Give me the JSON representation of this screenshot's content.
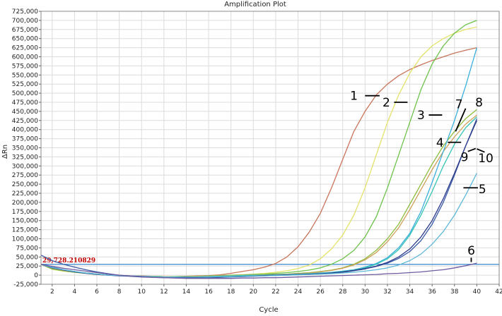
{
  "chart_data": {
    "type": "line",
    "title": "Amplification Plot",
    "xlabel": "Cycle",
    "ylabel": "ΔRn",
    "xlim": [
      1,
      42
    ],
    "ylim": [
      -25000,
      725000
    ],
    "xticks": [
      2,
      4,
      6,
      8,
      10,
      12,
      14,
      16,
      18,
      20,
      22,
      24,
      26,
      28,
      30,
      32,
      34,
      36,
      38,
      40,
      42
    ],
    "yticks": [
      -25000,
      0,
      25000,
      50000,
      75000,
      100000,
      125000,
      150000,
      175000,
      200000,
      225000,
      250000,
      275000,
      300000,
      325000,
      350000,
      375000,
      400000,
      425000,
      450000,
      475000,
      500000,
      525000,
      550000,
      575000,
      600000,
      625000,
      650000,
      675000,
      700000,
      725000
    ],
    "ytick_labels": [
      "-25,000",
      "0",
      "25,000",
      "50,000",
      "75,000",
      "100,000",
      "125,000",
      "150,000",
      "175,000",
      "200,000",
      "225,000",
      "250,000",
      "275,000",
      "300,000",
      "325,000",
      "350,000",
      "375,000",
      "400,000",
      "425,000",
      "450,000",
      "475,000",
      "500,000",
      "525,000",
      "550,000",
      "575,000",
      "600,000",
      "625,000",
      "650,000",
      "675,000",
      "700,000",
      "725,000"
    ],
    "grid": true,
    "threshold": {
      "value": 29728.210829,
      "label": "29,728.210829",
      "color": "#5b9bd5"
    },
    "x": [
      1,
      2,
      3,
      4,
      5,
      6,
      7,
      8,
      9,
      10,
      11,
      12,
      13,
      14,
      15,
      16,
      17,
      18,
      19,
      20,
      21,
      22,
      23,
      24,
      25,
      26,
      27,
      28,
      29,
      30,
      31,
      32,
      33,
      34,
      35,
      36,
      37,
      38,
      39,
      40
    ],
    "series": [
      {
        "color": "#c8745a",
        "values": [
          30000,
          18000,
          13000,
          9000,
          6000,
          3000,
          0,
          -1000,
          -2000,
          -2000,
          -3000,
          -4000,
          -4000,
          -3000,
          -2000,
          -1000,
          1000,
          5000,
          10000,
          15000,
          22000,
          32000,
          50000,
          78000,
          118000,
          170000,
          240000,
          318000,
          395000,
          450000,
          495000,
          525000,
          548000,
          565000,
          578000,
          590000,
          600000,
          610000,
          618000,
          625000
        ]
      },
      {
        "color": "#e3e36a",
        "values": [
          30000,
          16000,
          11000,
          8000,
          5000,
          2000,
          0,
          -1000,
          -2000,
          -3000,
          -3000,
          -4000,
          -4000,
          -4000,
          -3000,
          -2000,
          -1000,
          0,
          1000,
          3000,
          5000,
          8000,
          12000,
          18000,
          28000,
          45000,
          72000,
          110000,
          165000,
          240000,
          330000,
          420000,
          495000,
          555000,
          600000,
          630000,
          650000,
          665000,
          675000,
          682000
        ]
      },
      {
        "color": "#6cc24a",
        "values": [
          30000,
          17000,
          12000,
          8000,
          5000,
          2000,
          0,
          -1000,
          -2000,
          -3000,
          -3000,
          -4000,
          -4000,
          -4000,
          -3000,
          -2000,
          -1000,
          0,
          1000,
          2000,
          3000,
          5000,
          7000,
          10000,
          14000,
          20000,
          30000,
          45000,
          68000,
          105000,
          160000,
          240000,
          330000,
          420000,
          510000,
          580000,
          630000,
          665000,
          688000,
          700000
        ]
      },
      {
        "color": "#8fbc3f",
        "values": [
          30000,
          20000,
          14000,
          9000,
          6000,
          3000,
          0,
          -1000,
          -2000,
          -3000,
          -3000,
          -4000,
          -5000,
          -5000,
          -4000,
          -3000,
          -2000,
          -1000,
          0,
          1000,
          1000,
          2000,
          3000,
          5000,
          7000,
          10000,
          14000,
          20000,
          30000,
          45000,
          68000,
          100000,
          140000,
          195000,
          250000,
          305000,
          355000,
          395000,
          430000,
          455000
        ]
      },
      {
        "color": "#d0a05a",
        "values": [
          30000,
          19000,
          13000,
          9000,
          6000,
          3000,
          0,
          -1000,
          -2000,
          -3000,
          -4000,
          -4000,
          -5000,
          -5000,
          -4000,
          -3000,
          -2000,
          -1000,
          0,
          1000,
          1000,
          2000,
          3000,
          4000,
          6000,
          9000,
          13000,
          19000,
          28000,
          42000,
          62000,
          92000,
          130000,
          180000,
          235000,
          290000,
          340000,
          380000,
          415000,
          440000
        ]
      },
      {
        "color": "#3aafdc",
        "values": [
          30000,
          22000,
          15000,
          10000,
          6000,
          3000,
          0,
          -1000,
          -2000,
          -3000,
          -4000,
          -5000,
          -5000,
          -5000,
          -5000,
          -4000,
          -3000,
          -2000,
          -1000,
          0,
          0,
          1000,
          2000,
          3000,
          4000,
          6000,
          8000,
          11000,
          15000,
          22000,
          32000,
          48000,
          75000,
          115000,
          175000,
          255000,
          340000,
          425000,
          520000,
          625000
        ]
      },
      {
        "color": "#35c4b4",
        "values": [
          30000,
          21000,
          15000,
          10000,
          6000,
          3000,
          0,
          -1000,
          -2000,
          -3000,
          -4000,
          -5000,
          -5000,
          -5000,
          -5000,
          -4000,
          -3000,
          -2000,
          -1000,
          0,
          0,
          1000,
          2000,
          3000,
          4000,
          5000,
          7000,
          10000,
          14000,
          20000,
          30000,
          45000,
          70000,
          110000,
          165000,
          230000,
          300000,
          360000,
          405000,
          435000
        ]
      },
      {
        "color": "#3b5ba5",
        "values": [
          55000,
          40000,
          30000,
          22000,
          15000,
          9000,
          4000,
          0,
          -3000,
          -5000,
          -6000,
          -7000,
          -7000,
          -7000,
          -7000,
          -7000,
          -6000,
          -5000,
          -4000,
          -3000,
          -2000,
          -1000,
          0,
          1000,
          2000,
          3000,
          5000,
          8000,
          12000,
          17000,
          24000,
          33000,
          46000,
          65000,
          95000,
          140000,
          200000,
          275000,
          355000,
          430000
        ]
      },
      {
        "color": "#2b3a8a",
        "values": [
          30000,
          20000,
          14000,
          9000,
          5000,
          2000,
          0,
          -2000,
          -3000,
          -4000,
          -5000,
          -6000,
          -6000,
          -6000,
          -6000,
          -5000,
          -5000,
          -4000,
          -3000,
          -2000,
          -1000,
          0,
          1000,
          2000,
          3000,
          4000,
          6000,
          9000,
          13000,
          18000,
          25000,
          35000,
          50000,
          72000,
          105000,
          150000,
          210000,
          280000,
          355000,
          425000
        ]
      },
      {
        "color": "#5fb8d8",
        "values": [
          30000,
          21000,
          15000,
          10000,
          6000,
          3000,
          0,
          -1000,
          -2000,
          -3000,
          -4000,
          -5000,
          -5000,
          -5000,
          -5000,
          -5000,
          -4000,
          -4000,
          -3000,
          -2000,
          -2000,
          -1000,
          0,
          1000,
          2000,
          3000,
          4000,
          6000,
          8000,
          11000,
          15000,
          20000,
          28000,
          40000,
          58000,
          85000,
          120000,
          165000,
          220000,
          280000
        ]
      },
      {
        "color": "#6e5ba0",
        "values": [
          30000,
          24000,
          19000,
          15000,
          11000,
          7000,
          3000,
          0,
          -2000,
          -4000,
          -6000,
          -7000,
          -8000,
          -9000,
          -9000,
          -9000,
          -9000,
          -9000,
          -8000,
          -8000,
          -7000,
          -7000,
          -6000,
          -5000,
          -4000,
          -3000,
          -2000,
          -1000,
          0,
          1000,
          2000,
          4000,
          5000,
          7000,
          9000,
          12000,
          15000,
          20000,
          26000,
          33000
        ]
      }
    ],
    "annotations": [
      {
        "label": "1",
        "tx": 29.0,
        "ty": 493000,
        "line": [
          [
            30.0,
            493000
          ],
          [
            31.3,
            493000
          ]
        ]
      },
      {
        "label": "2",
        "tx": 31.9,
        "ty": 475000,
        "line": [
          [
            32.6,
            475000
          ],
          [
            33.8,
            475000
          ]
        ]
      },
      {
        "label": "3",
        "tx": 35.0,
        "ty": 440000,
        "line": [
          [
            35.7,
            440000
          ],
          [
            36.9,
            440000
          ]
        ]
      },
      {
        "label": "4",
        "tx": 36.7,
        "ty": 365000,
        "line": [
          [
            37.4,
            365000
          ],
          [
            38.6,
            365000
          ]
        ]
      },
      {
        "label": "5",
        "tx": 40.5,
        "ty": 237000,
        "line": [
          [
            38.8,
            240000
          ],
          [
            40.1,
            240000
          ]
        ]
      },
      {
        "label": "6",
        "tx": 39.5,
        "ty": 68000,
        "line": [
          [
            39.5,
            36000
          ],
          [
            39.5,
            48000
          ]
        ]
      },
      {
        "label": "7",
        "tx": 38.4,
        "ty": 470000,
        "line": [
          [
            39.0,
            458000
          ],
          [
            38.1,
            395000
          ]
        ]
      },
      {
        "label": "8",
        "tx": 40.2,
        "ty": 475000,
        "line": []
      },
      {
        "label": "9",
        "tx": 38.9,
        "ty": 325000,
        "line": [
          [
            39.2,
            340000
          ],
          [
            39.9,
            348000
          ]
        ]
      },
      {
        "label": "10",
        "tx": 40.8,
        "ty": 322000,
        "line": [
          [
            40.0,
            347000
          ],
          [
            40.7,
            338000
          ]
        ]
      }
    ]
  }
}
